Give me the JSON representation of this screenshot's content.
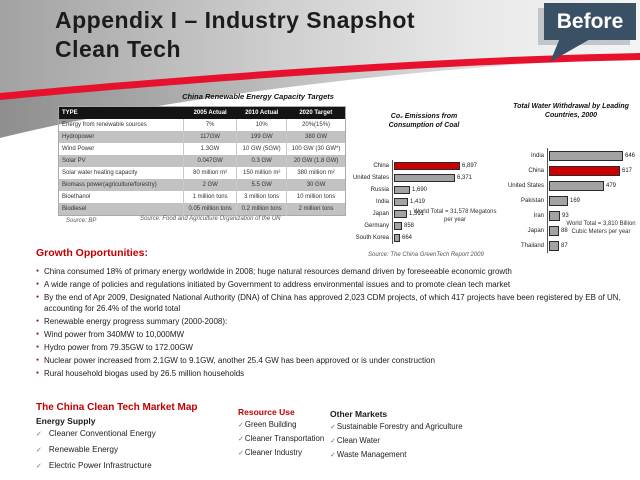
{
  "slide": {
    "title_line1": "Appendix I – Industry Snapshot",
    "title_line2": "Clean Tech",
    "badge_label": "Before"
  },
  "capacity_table": {
    "title": "China Renewable Energy Capacity Targets",
    "columns": [
      "TYPE",
      "2005 Actual",
      "2010 Actual",
      "2020 Target"
    ],
    "rows": [
      [
        "Energy from renewable sources",
        "7%",
        "10%",
        "20%(15%)"
      ],
      [
        "Hydropower",
        "117GW",
        "199 GW",
        "380 GW"
      ],
      [
        "Wind Power",
        "1.3GW",
        "10 GW (5GW)",
        "100 GW (30 GW*)"
      ],
      [
        "Solar PV",
        "0.047GW",
        "0.3 GW",
        "20 GW (1.8 GW)"
      ],
      [
        "Solar water heating capacity",
        "80 million m²",
        "150 million m²",
        "380 million m²"
      ],
      [
        "Biomass power(agriculture/forestry)",
        "2 GW",
        "5.5 GW",
        "30 GW"
      ],
      [
        "Bioethanol",
        "1 million tons",
        "3 million tons",
        "10 million tons"
      ],
      [
        "Biodiesel",
        "0.05 million tons",
        "0.2 million tons",
        "2 million tons"
      ]
    ],
    "source_left": "Source: BP",
    "source_right": "Source: Food and Agriculture Organization of the UN"
  },
  "chart_data": [
    {
      "type": "bar",
      "orientation": "horizontal",
      "title": "Co₂ Emissions from Consumption of Coal",
      "categories": [
        "China",
        "United States",
        "Russia",
        "India",
        "Japan",
        "Germany",
        "South Korea"
      ],
      "values": [
        6897,
        6371,
        1690,
        1419,
        1391,
        858,
        664
      ],
      "value_labels": [
        "6,897",
        "6,371",
        "1,690",
        "1,419",
        "1,391",
        "858",
        "664"
      ],
      "highlight_category": "China",
      "annotation": "World Total = 31,578 Megatons per year",
      "xlabel": "",
      "ylabel": "",
      "legend": "none",
      "grid": false
    },
    {
      "type": "bar",
      "orientation": "horizontal",
      "title": "Total Water Withdrawal by Leading Countries, 2000",
      "categories": [
        "India",
        "China",
        "United States",
        "Pakistan",
        "Iran",
        "Japan",
        "Thailand"
      ],
      "values": [
        646,
        617,
        479,
        169,
        93,
        88,
        87
      ],
      "value_labels": [
        "646",
        "617",
        "479",
        "169",
        "93",
        "88",
        "87"
      ],
      "highlight_category": "China",
      "annotation": "World Total = 3,810 Billion Cubic Meters per year",
      "xlabel": "",
      "ylabel": "",
      "legend": "none",
      "grid": false
    }
  ],
  "charts_source": "Source: The China GreenTech Report 2009",
  "growth": {
    "heading": "Growth Opportunities:",
    "bullets": [
      "China consumed 18% of primary energy worldwide in 2008; huge natural resources demand driven by foreseeable economic growth",
      "A wide range of policies and regulations initiated by Government to address environmental issues and to promote clean tech market",
      "By the end of Apr 2009, Designated National Authority (DNA) of China has approved 2,023 CDM projects, of which 417 projects have been registered by EB of UN, accounting for 26.4% of the world total",
      "Renewable energy progress summary (2000-2008):",
      "Wind power from 340MW to 10,000MW",
      "Hydro power from 79.35GW to 172.00GW",
      "Nuclear power increased from 2.1GW to 9.1GW, another 25.4 GW has been approved or is under construction",
      "Rural household biogas used by 26.5 million households"
    ]
  },
  "market_map": {
    "heading": "The China Clean Tech Market Map",
    "check_glyph": "✓",
    "columns": [
      {
        "title": "Energy Supply",
        "accent": false,
        "items": [
          "Cleaner Conventional Energy",
          "Renewable Energy",
          "Electric Power Infrastructure"
        ]
      },
      {
        "title": "Resource Use",
        "accent": true,
        "items": [
          "Green  Building",
          "Cleaner Transportation",
          "Cleaner Industry"
        ]
      },
      {
        "title": "Other Markets",
        "accent": false,
        "items": [
          "Sustainable Forestry and Agriculture",
          "Clean  Water",
          "Waste Management"
        ]
      }
    ]
  },
  "colors": {
    "accent_red": "#c00000",
    "swoosh_red": "#e8112d",
    "badge_bg": "#3a5064",
    "bar_gray": "#a3a3a3",
    "bar_red": "#cc0000"
  }
}
